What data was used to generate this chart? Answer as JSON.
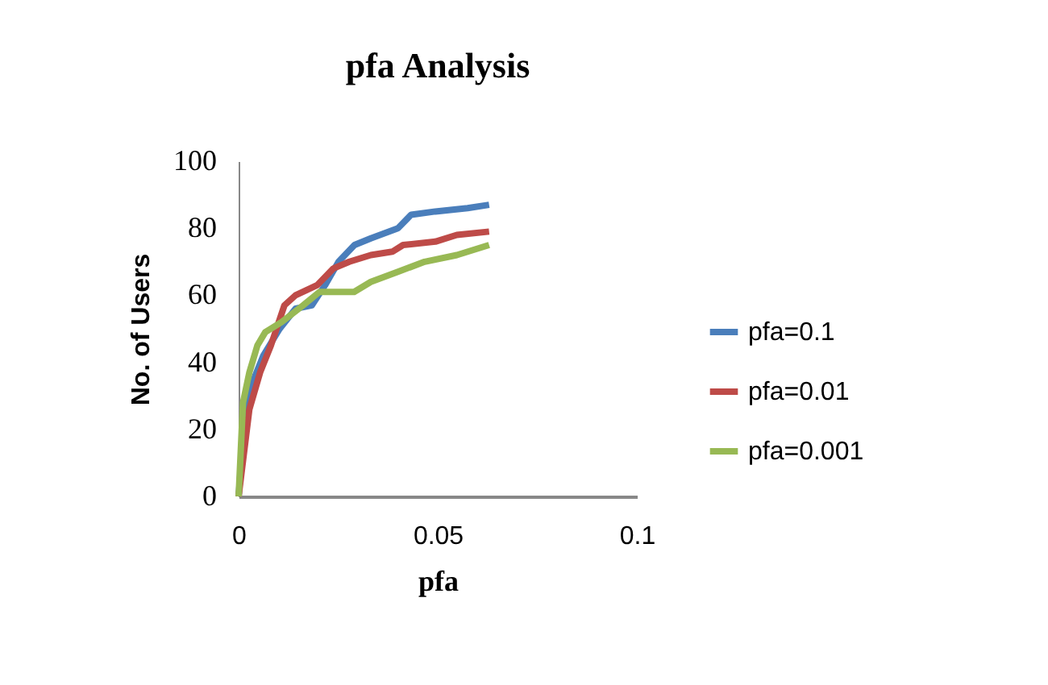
{
  "chart_data": {
    "type": "line",
    "title": "pfa Analysis",
    "xlabel": "pfa",
    "ylabel": "No. of Users",
    "xlim": [
      0,
      0.1
    ],
    "xticks": [
      0,
      0.05,
      0.1
    ],
    "ylim": [
      0,
      100
    ],
    "yticks": [
      0,
      20,
      40,
      60,
      80,
      100
    ],
    "grid": false,
    "legend": "right",
    "marker": "none",
    "line_style": "solid",
    "series": [
      {
        "name": "pfa=0.1",
        "color": "#4a7ebb",
        "x": [
          0,
          0.0015,
          0.0035,
          0.0062,
          0.0103,
          0.0143,
          0.0184,
          0.0217,
          0.0251,
          0.0291,
          0.0332,
          0.04,
          0.0433,
          0.0494,
          0.0575,
          0.0629
        ],
        "values": [
          0,
          23,
          34,
          42,
          50,
          56,
          57,
          63,
          70,
          75,
          77,
          80,
          84,
          85,
          86,
          87
        ]
      },
      {
        "name": "pfa=0.01",
        "color": "#be4b48",
        "x": [
          0,
          0.0027,
          0.0054,
          0.0081,
          0.0115,
          0.0143,
          0.0197,
          0.0238,
          0.0278,
          0.0332,
          0.0386,
          0.0413,
          0.0494,
          0.0548,
          0.0629
        ],
        "values": [
          0,
          26,
          37,
          45,
          57,
          60,
          63,
          68,
          70,
          72,
          73,
          75,
          76,
          78,
          79
        ]
      },
      {
        "name": "pfa=0.001",
        "color": "#98b954",
        "x": [
          0,
          0.0011,
          0.0027,
          0.0047,
          0.0067,
          0.0108,
          0.0162,
          0.0203,
          0.029,
          0.0332,
          0.04,
          0.0467,
          0.0548,
          0.0629
        ],
        "values": [
          0,
          28,
          37,
          45,
          49,
          52,
          57,
          61,
          61,
          64,
          67,
          70,
          72,
          75
        ]
      }
    ]
  }
}
